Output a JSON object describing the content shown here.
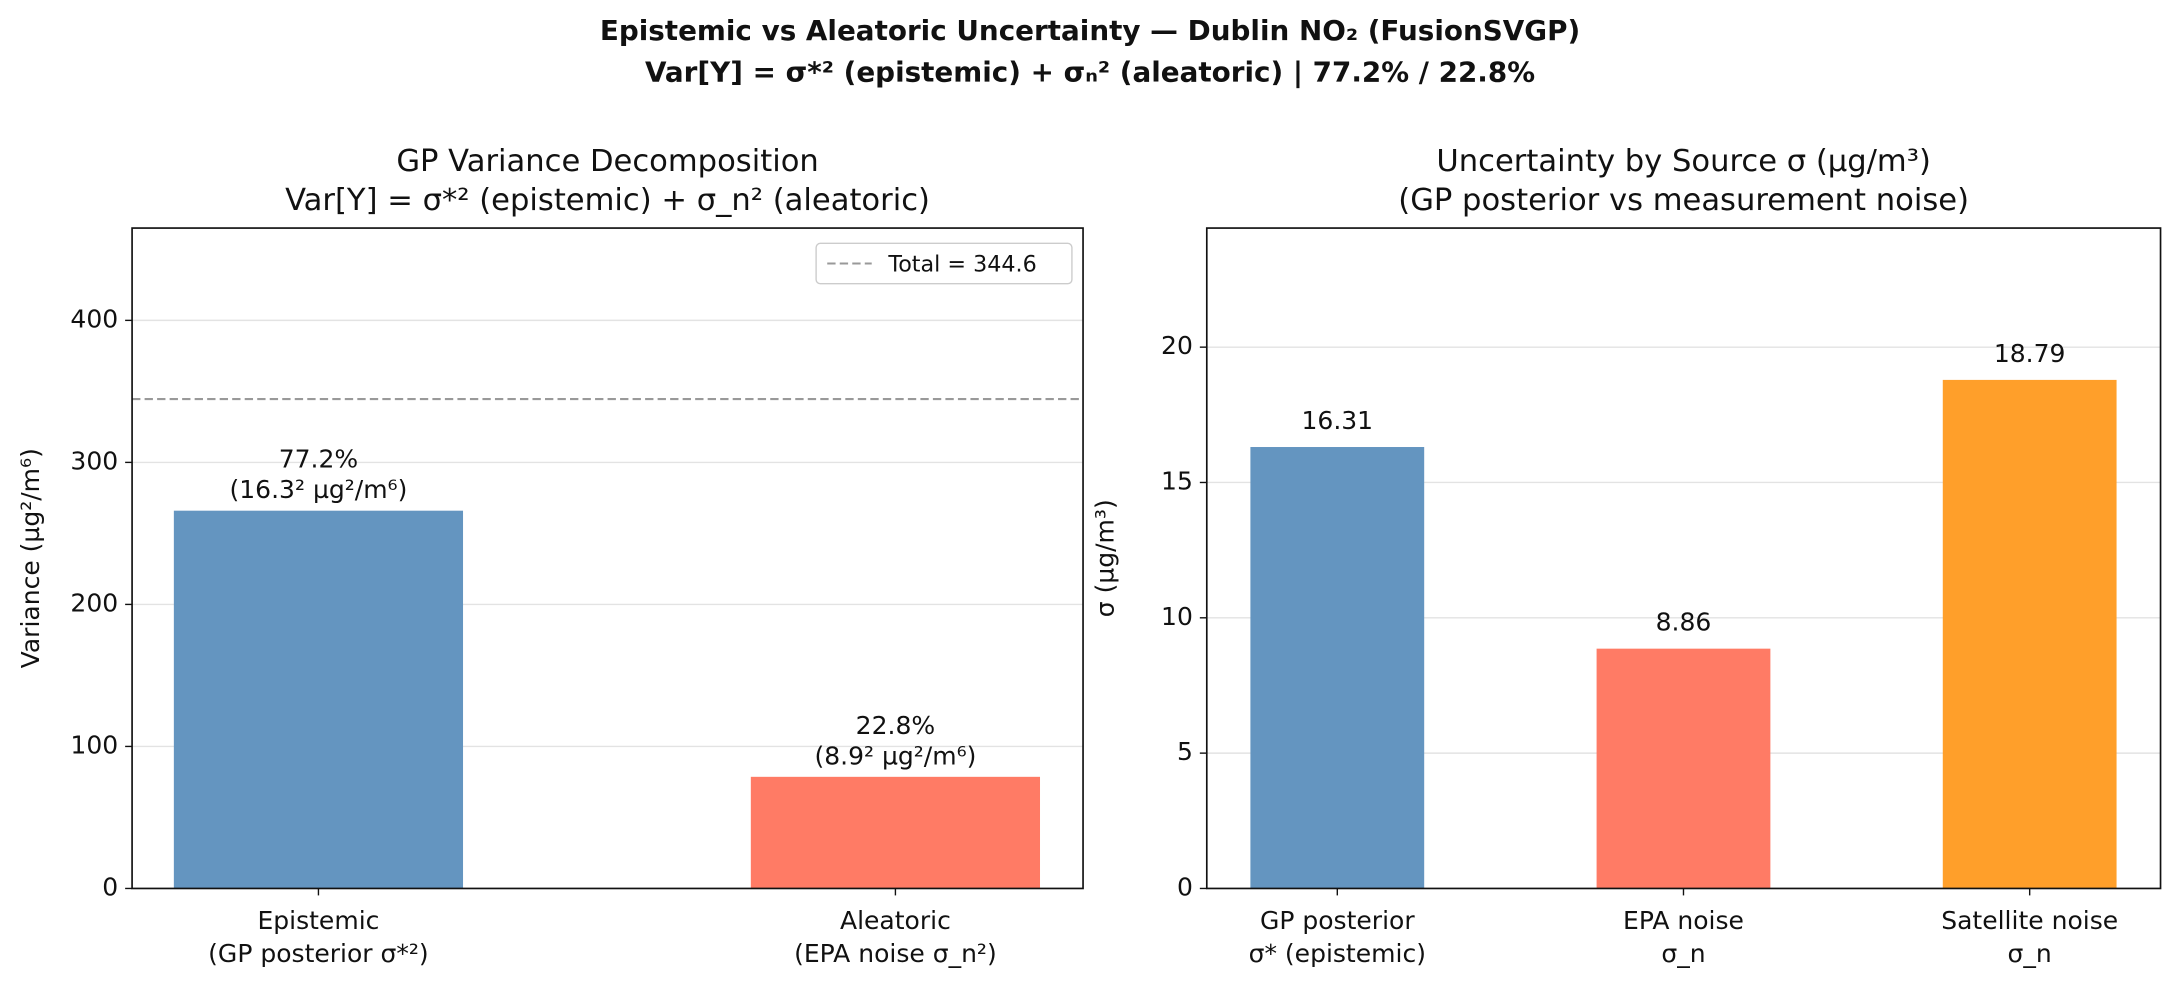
{
  "title": [
    "Epistemic vs Aleatoric Uncertainty — Dublin NO₂ (FusionSVGP)",
    "Var[Y] = σ*² (epistemic)  +  σₙ² (aleatoric)   |   77.2% / 22.8%"
  ],
  "chart_data": [
    {
      "type": "bar",
      "title": [
        "GP Variance Decomposition",
        "Var[Y] = σ*² (epistemic) + σ_n² (aleatoric)"
      ],
      "y_label": "Variance (µg²/m⁶)",
      "categories": [
        [
          "Epistemic",
          "(GP posterior σ*²)"
        ],
        [
          "Aleatoric",
          "(EPA noise σ_n²)"
        ]
      ],
      "values": [
        266.0,
        78.6
      ],
      "bar_labels": [
        [
          "77.2%",
          "(16.3² µg²/m⁶)"
        ],
        [
          "22.8%",
          "(8.9² µg²/m⁶)"
        ]
      ],
      "colors": [
        "#6495c0",
        "#ff7b65"
      ],
      "ylim": [
        0,
        465
      ],
      "yticks": [
        0,
        100,
        200,
        300,
        400
      ],
      "grid": true,
      "reference_line": {
        "value": 344.6,
        "label": "Total = 344.6",
        "color": "#999999"
      },
      "legend": "upper right"
    },
    {
      "type": "bar",
      "title": [
        "Uncertainty by Source  σ (µg/m³)",
        "(GP posterior vs measurement noise)"
      ],
      "y_label": "σ (µg/m³)",
      "categories": [
        [
          "GP posterior",
          "σ* (epistemic)"
        ],
        [
          "EPA noise",
          "σ_n"
        ],
        [
          "Satellite noise",
          "σ_n"
        ]
      ],
      "values": [
        16.31,
        8.86,
        18.79
      ],
      "colors": [
        "#6495c0",
        "#ff7b65",
        "#ff9f2a"
      ],
      "ylim": [
        0,
        24.4
      ],
      "yticks": [
        0,
        5,
        10,
        15,
        20
      ],
      "grid": true
    }
  ]
}
